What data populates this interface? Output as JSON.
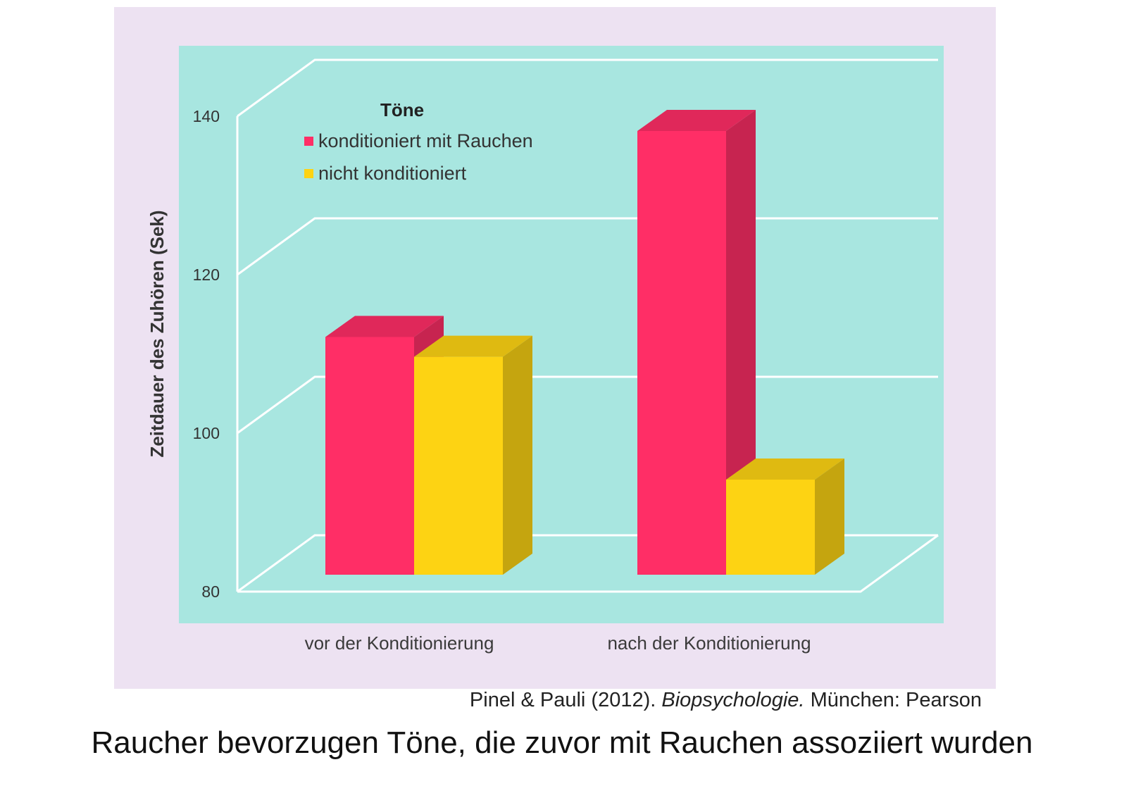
{
  "chart_data": {
    "type": "bar",
    "ylabel": "Zeitdauer des Zuhören (Sek)",
    "xlabel": "",
    "ylim": [
      80,
      140
    ],
    "yticks": [
      80,
      100,
      120,
      140
    ],
    "grid": true,
    "legend": {
      "title": "Töne",
      "placement": "top-left"
    },
    "categories": [
      "vor der Konditionierung",
      "nach der Konditionierung"
    ],
    "series": [
      {
        "name": "konditioniert mit Rauchen",
        "color": "#ff2e66",
        "values": [
          110,
          136
        ]
      },
      {
        "name": "nicht konditioniert",
        "color": "#fdd313",
        "values": [
          107.5,
          92
        ]
      }
    ]
  },
  "colors": {
    "frame_background": "#ede2f2",
    "plot_background": "#a8e6e0",
    "grid": "#ffffff"
  },
  "citation": {
    "authors": "Pinel & Pauli (2012).",
    "book": "Biopsychologie.",
    "publisher": "München: Pearson"
  },
  "caption": "Raucher bevorzugen Töne, die zuvor mit Rauchen assoziiert wurden"
}
